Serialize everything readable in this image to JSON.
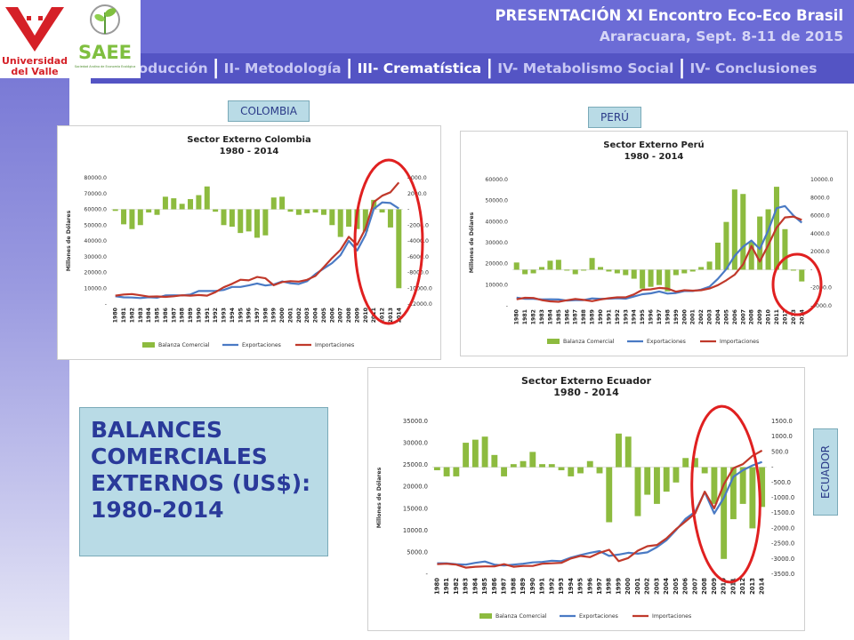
{
  "header": {
    "title": "PRESENTACIÓN XI Encontro Eco-Eco Brasil",
    "subtitle": "Araracuara, Sept. 8-11 de 2015"
  },
  "logos": {
    "university_lines": [
      "Universidad",
      "del Valle"
    ],
    "saee_name": "SAEE",
    "saee_tagline": "Sociedad Andina de Economía Ecológica"
  },
  "nav": {
    "items": [
      {
        "label": "I- Introducción",
        "active": false
      },
      {
        "label": "II- Metodología",
        "active": false
      },
      {
        "label": "III- Crematística",
        "active": true
      },
      {
        "label": "IV- Metabolismo Social",
        "active": false
      },
      {
        "label": "IV- Conclusiones",
        "active": false
      }
    ]
  },
  "labels": {
    "colombia": "COLOMBIA",
    "peru": "PERÚ",
    "ecuador": "ECUADOR"
  },
  "balance_box": {
    "lines": [
      "BALANCES",
      "COMERCIALES",
      "EXTERNOS (US$):",
      "1980-2014"
    ]
  },
  "colors": {
    "bar": "#8dbb3f",
    "exports": "#4a7ac4",
    "imports": "#c0392b",
    "highlight_circle": "#e02020",
    "nav_bg": "#5454c4",
    "header_bg": "#6c6cd6"
  },
  "chart_data": [
    {
      "id": "colombia",
      "type": "bar+line",
      "title": "Sector Externo Colombia",
      "subtitle": "1980 - 2014",
      "ylabel": "Millones de Dólares",
      "x": [
        1980,
        1981,
        1982,
        1983,
        1984,
        1985,
        1986,
        1987,
        1988,
        1989,
        1990,
        1991,
        1992,
        1993,
        1994,
        1995,
        1996,
        1997,
        1998,
        1999,
        2000,
        2001,
        2002,
        2003,
        2004,
        2005,
        2006,
        2007,
        2008,
        2009,
        2010,
        2011,
        2012,
        2013,
        2014
      ],
      "left_axis": {
        "ticks": [
          "80000.0",
          "70000.0",
          "60000.0",
          "50000.0",
          "40000.0",
          "30000.0",
          "20000.0",
          "10000.0",
          "-"
        ],
        "ylim": [
          0,
          80000
        ]
      },
      "right_axis": {
        "ticks": [
          "4000.0",
          "2000.0",
          "-",
          "-2000.0",
          "-4000.0",
          "-6000.0",
          "-8000.0",
          "-10000.0",
          "-12000.0"
        ],
        "ylim": [
          -12000,
          4000
        ]
      },
      "series": [
        {
          "name": "Balanza Comercial",
          "axis": "right",
          "kind": "bar",
          "values": [
            -200,
            -1900,
            -2500,
            -2000,
            -400,
            -700,
            1600,
            1400,
            700,
            1300,
            1800,
            2900,
            -300,
            -2000,
            -2200,
            -3000,
            -2800,
            -3600,
            -3300,
            1500,
            1600,
            -300,
            -700,
            -500,
            -400,
            -700,
            -2000,
            -3500,
            -2200,
            -2500,
            -2800,
            1200,
            -400,
            -2300,
            -10000
          ]
        },
        {
          "name": "Exportaciones",
          "axis": "left",
          "kind": "line",
          "values": [
            4900,
            4200,
            4100,
            3800,
            4300,
            4000,
            5400,
            5500,
            5400,
            6000,
            8200,
            8200,
            8300,
            8900,
            10800,
            10800,
            11800,
            13000,
            11700,
            12400,
            14300,
            13100,
            12700,
            14500,
            19000,
            22500,
            25900,
            30900,
            40000,
            33900,
            43700,
            60300,
            64400,
            64000,
            60500
          ]
        },
        {
          "name": "Importaciones",
          "axis": "left",
          "kind": "line",
          "values": [
            5300,
            6000,
            6300,
            5500,
            4700,
            4800,
            4500,
            4900,
            5500,
            5300,
            5700,
            5300,
            7500,
            10600,
            12800,
            15400,
            15000,
            17100,
            16300,
            11900,
            13900,
            14500,
            14200,
            15300,
            17800,
            23400,
            29100,
            34300,
            42600,
            37500,
            47800,
            64600,
            68600,
            70800,
            77000
          ]
        }
      ]
    },
    {
      "id": "peru",
      "type": "bar+line",
      "title": "Sector Externo Perú",
      "subtitle": "1980 - 2014",
      "ylabel": "Millones de Dólares",
      "x": [
        1980,
        1981,
        1982,
        1983,
        1984,
        1985,
        1986,
        1987,
        1988,
        1989,
        1990,
        1991,
        1992,
        1993,
        1994,
        1995,
        1996,
        1997,
        1998,
        1999,
        2000,
        2001,
        2002,
        2003,
        2004,
        2005,
        2006,
        2007,
        2008,
        2009,
        2010,
        2011,
        2012,
        2013,
        2014
      ],
      "left_axis": {
        "ticks": [
          "60000.0",
          "50000.0",
          "40000.0",
          "30000.0",
          "20000.0",
          "10000.0",
          "-"
        ],
        "ylim": [
          0,
          60000
        ]
      },
      "right_axis": {
        "ticks": [
          "10000.0",
          "8000.0",
          "6000.0",
          "4000.0",
          "2000.0",
          "-",
          "-2000.0",
          "-4000.0"
        ],
        "ylim": [
          -4000,
          10000
        ]
      },
      "series": [
        {
          "name": "Balanza Comercial",
          "axis": "right",
          "kind": "bar",
          "values": [
            800,
            -500,
            -400,
            300,
            1000,
            1100,
            -100,
            -500,
            -100,
            1300,
            300,
            -200,
            -400,
            -600,
            -1000,
            -2100,
            -1900,
            -1700,
            -2400,
            -600,
            -400,
            -200,
            300,
            900,
            3000,
            5300,
            8900,
            8400,
            3100,
            5900,
            6700,
            9200,
            4500,
            -100,
            -1300
          ]
        },
        {
          "name": "Exportaciones",
          "axis": "left",
          "kind": "line",
          "values": [
            3900,
            3300,
            3300,
            3000,
            3100,
            3000,
            2500,
            2700,
            2700,
            3500,
            3300,
            3400,
            3600,
            3400,
            4400,
            5500,
            5900,
            6800,
            5800,
            6100,
            7000,
            7000,
            7700,
            9100,
            12800,
            17400,
            23800,
            28100,
            31000,
            27000,
            35800,
            46400,
            47400,
            42900,
            39500
          ]
        },
        {
          "name": "Importaciones",
          "axis": "left",
          "kind": "line",
          "values": [
            3100,
            3800,
            3700,
            2700,
            2100,
            1900,
            2600,
            3200,
            2800,
            2200,
            3000,
            3600,
            4000,
            4000,
            5400,
            7600,
            7800,
            8500,
            8200,
            6700,
            7400,
            7200,
            7400,
            8200,
            9800,
            12100,
            14800,
            19600,
            28400,
            21000,
            28800,
            37200,
            42000,
            42400,
            40800
          ]
        }
      ]
    },
    {
      "id": "ecuador",
      "type": "bar+line",
      "title": "Sector Externo Ecuador",
      "subtitle": "1980 - 2014",
      "ylabel": "Millones de Dólares",
      "x": [
        1980,
        1981,
        1982,
        1983,
        1984,
        1985,
        1986,
        1987,
        1988,
        1989,
        1990,
        1991,
        1992,
        1993,
        1994,
        1995,
        1996,
        1997,
        1998,
        1999,
        2000,
        2001,
        2002,
        2003,
        2004,
        2005,
        2006,
        2007,
        2008,
        2009,
        2010,
        2011,
        2012,
        2013,
        2014
      ],
      "left_axis": {
        "ticks": [
          "35000.0",
          "30000.0",
          "25000.0",
          "20000.0",
          "15000.0",
          "10000.0",
          "5000.0",
          "-"
        ],
        "ylim": [
          0,
          35000
        ]
      },
      "right_axis": {
        "ticks": [
          "1500.0",
          "1000.0",
          "500.0",
          "-",
          "-500.0",
          "-1000.0",
          "-1500.0",
          "-2000.0",
          "-2500.0",
          "-3000.0",
          "-3500.0"
        ],
        "ylim": [
          -3500,
          1500
        ]
      },
      "series": [
        {
          "name": "Balanza Comercial",
          "axis": "right",
          "kind": "bar",
          "values": [
            -100,
            -300,
            -300,
            800,
            900,
            1000,
            400,
            -300,
            100,
            200,
            500,
            100,
            100,
            -100,
            -300,
            -200,
            200,
            -200,
            -1800,
            1100,
            1000,
            -1600,
            -900,
            -1200,
            -800,
            -500,
            300,
            300,
            -200,
            -1200,
            -3000,
            -1700,
            -1200,
            -2000,
            -1300
          ]
        },
        {
          "name": "Exportaciones",
          "axis": "left",
          "kind": "line",
          "values": [
            2500,
            2500,
            2300,
            2200,
            2600,
            2900,
            2200,
            2000,
            2200,
            2400,
            2700,
            2800,
            3100,
            3000,
            3800,
            4400,
            4900,
            5300,
            4200,
            4500,
            4900,
            4700,
            5000,
            6200,
            7800,
            10100,
            12700,
            14300,
            18800,
            13900,
            17500,
            22300,
            23800,
            24900,
            25700
          ]
        },
        {
          "name": "Importaciones",
          "axis": "left",
          "kind": "line",
          "values": [
            2300,
            2400,
            2200,
            1500,
            1700,
            1800,
            1800,
            2300,
            1700,
            1900,
            1900,
            2400,
            2500,
            2600,
            3600,
            4200,
            3900,
            4900,
            5600,
            3000,
            3700,
            5400,
            6400,
            6700,
            8200,
            10300,
            12100,
            13900,
            18900,
            15100,
            20600,
            24300,
            25200,
            27100,
            28300
          ]
        }
      ]
    }
  ]
}
